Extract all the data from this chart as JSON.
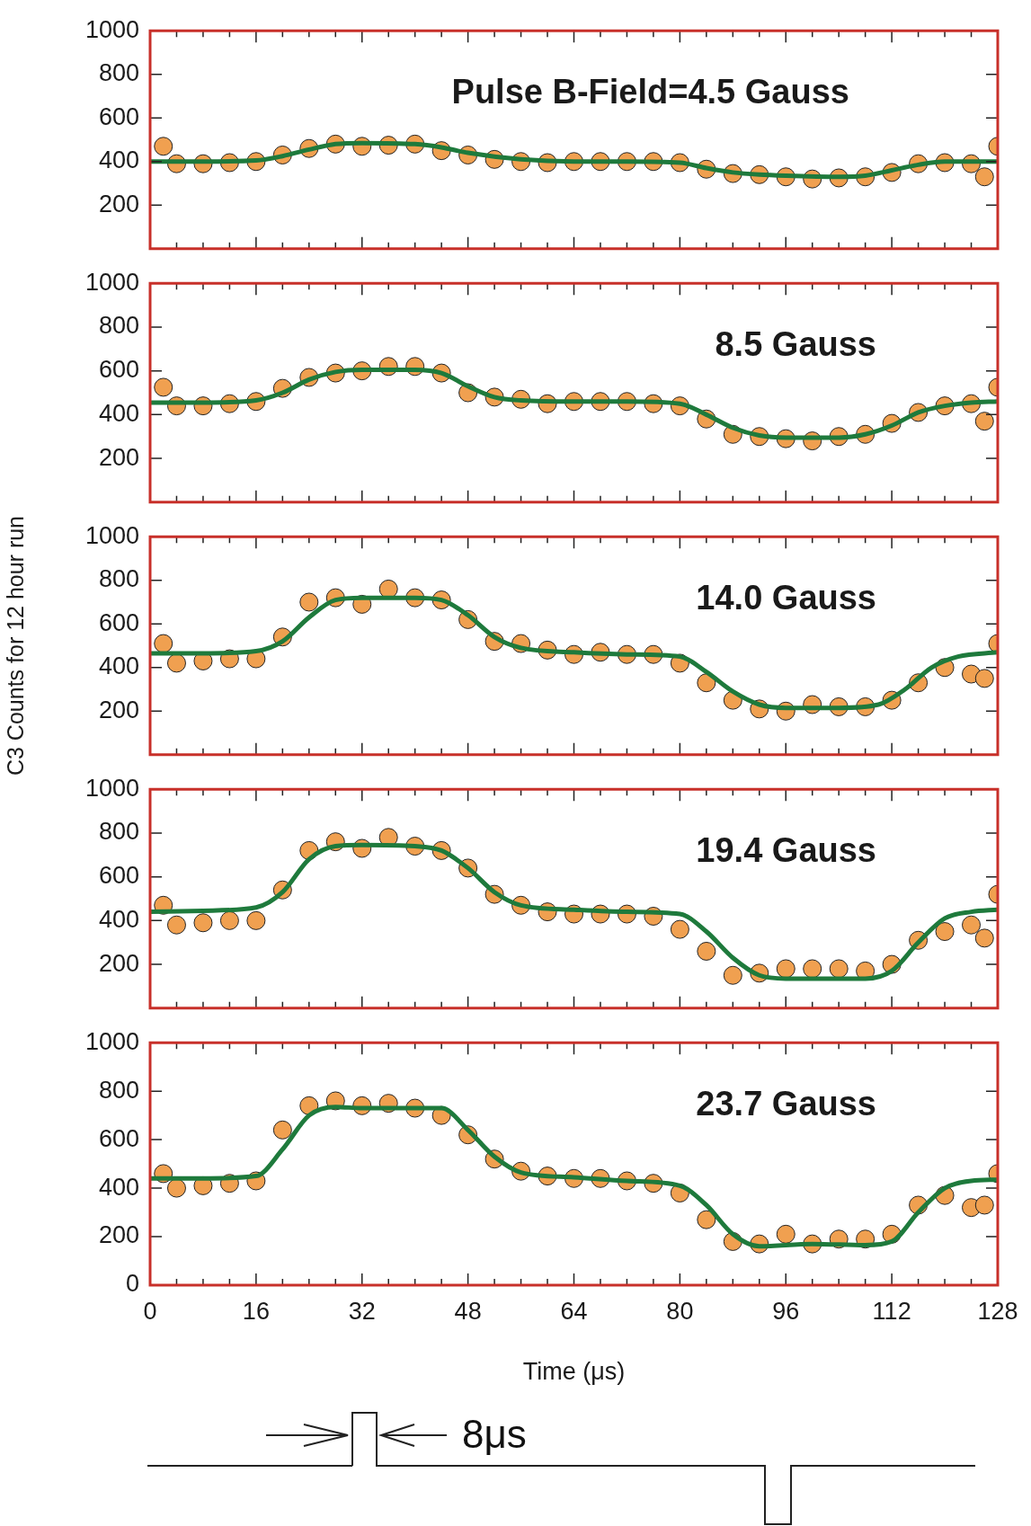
{
  "chart_data": [
    {
      "type": "scatter",
      "annotations": [
        "Pulse B-Field=4.5 Gauss"
      ],
      "xlim": [
        0,
        128
      ],
      "xticks": [
        0,
        {
          "value": 4,
          "label": null
        },
        {
          "value": 8,
          "label": null
        },
        {
          "value": 12,
          "label": null
        },
        16,
        {
          "value": 20,
          "label": null
        },
        {
          "value": 24,
          "label": null
        },
        {
          "value": 28,
          "label": null
        },
        32,
        {
          "value": 36,
          "label": null
        },
        {
          "value": 40,
          "label": null
        },
        {
          "value": 44,
          "label": null
        },
        48,
        {
          "value": 52,
          "label": null
        },
        {
          "value": 56,
          "label": null
        },
        {
          "value": 60,
          "label": null
        },
        64,
        {
          "value": 68,
          "label": null
        },
        {
          "value": 72,
          "label": null
        },
        {
          "value": 76,
          "label": null
        },
        80,
        {
          "value": 84,
          "label": null
        },
        {
          "value": 88,
          "label": null
        },
        {
          "value": 92,
          "label": null
        },
        96,
        {
          "value": 100,
          "label": null
        },
        {
          "value": 104,
          "label": null
        },
        {
          "value": 108,
          "label": null
        },
        112,
        {
          "value": 116,
          "label": null
        },
        {
          "value": 120,
          "label": null
        },
        {
          "value": 124,
          "label": null
        },
        128
      ],
      "ylim": [
        0,
        1000
      ],
      "yticks": [
        200,
        400,
        600,
        800,
        1000
      ],
      "tick_labels": "y",
      "marker": "circle",
      "series": [
        {
          "type": "scatter",
          "color": "#f0a050",
          "x": [
            2,
            4,
            8,
            12,
            16,
            20,
            24,
            28,
            32,
            36,
            40,
            44,
            48,
            52,
            56,
            60,
            64,
            68,
            72,
            76,
            80,
            84,
            88,
            92,
            96,
            100,
            104,
            108,
            112,
            116,
            120,
            124,
            126,
            128
          ],
          "values": [
            470,
            390,
            390,
            395,
            400,
            430,
            460,
            480,
            470,
            475,
            480,
            450,
            430,
            410,
            400,
            395,
            400,
            400,
            400,
            400,
            395,
            365,
            345,
            340,
            330,
            320,
            325,
            330,
            350,
            390,
            395,
            390,
            330,
            470
          ]
        },
        {
          "type": "line",
          "color": "#1e7a3c",
          "marker": "none",
          "x": [
            0,
            8,
            16,
            20,
            24,
            28,
            32,
            40,
            44,
            48,
            56,
            64,
            72,
            80,
            84,
            88,
            92,
            96,
            104,
            108,
            112,
            116,
            120,
            128
          ],
          "values": [
            400,
            400,
            405,
            425,
            455,
            480,
            485,
            480,
            465,
            440,
            410,
            400,
            400,
            395,
            370,
            350,
            340,
            335,
            330,
            335,
            360,
            385,
            400,
            400
          ]
        }
      ]
    },
    {
      "type": "scatter",
      "annotations": [
        "8.5 Gauss"
      ],
      "xlim": [
        0,
        128
      ],
      "xticks": [
        0,
        {
          "value": 4,
          "label": null
        },
        {
          "value": 8,
          "label": null
        },
        {
          "value": 12,
          "label": null
        },
        16,
        {
          "value": 20,
          "label": null
        },
        {
          "value": 24,
          "label": null
        },
        {
          "value": 28,
          "label": null
        },
        32,
        {
          "value": 36,
          "label": null
        },
        {
          "value": 40,
          "label": null
        },
        {
          "value": 44,
          "label": null
        },
        48,
        {
          "value": 52,
          "label": null
        },
        {
          "value": 56,
          "label": null
        },
        {
          "value": 60,
          "label": null
        },
        64,
        {
          "value": 68,
          "label": null
        },
        {
          "value": 72,
          "label": null
        },
        {
          "value": 76,
          "label": null
        },
        80,
        {
          "value": 84,
          "label": null
        },
        {
          "value": 88,
          "label": null
        },
        {
          "value": 92,
          "label": null
        },
        96,
        {
          "value": 100,
          "label": null
        },
        {
          "value": 104,
          "label": null
        },
        {
          "value": 108,
          "label": null
        },
        112,
        {
          "value": 116,
          "label": null
        },
        {
          "value": 120,
          "label": null
        },
        {
          "value": 124,
          "label": null
        },
        128
      ],
      "ylim": [
        0,
        1000
      ],
      "yticks": [
        200,
        400,
        600,
        800,
        1000
      ],
      "tick_labels": "y",
      "marker": "circle",
      "series": [
        {
          "type": "scatter",
          "color": "#f0a050",
          "x": [
            2,
            4,
            8,
            12,
            16,
            20,
            24,
            28,
            32,
            36,
            40,
            44,
            48,
            52,
            56,
            60,
            64,
            68,
            72,
            76,
            80,
            84,
            88,
            92,
            96,
            100,
            104,
            108,
            112,
            116,
            120,
            124,
            126,
            128
          ],
          "values": [
            525,
            440,
            440,
            450,
            460,
            520,
            570,
            590,
            600,
            620,
            620,
            590,
            500,
            480,
            470,
            450,
            460,
            460,
            460,
            450,
            440,
            380,
            310,
            300,
            290,
            280,
            300,
            310,
            360,
            410,
            440,
            450,
            370,
            525
          ]
        },
        {
          "type": "line",
          "color": "#1e7a3c",
          "marker": "none",
          "x": [
            0,
            8,
            16,
            20,
            24,
            28,
            32,
            40,
            44,
            48,
            52,
            56,
            64,
            72,
            80,
            84,
            88,
            92,
            96,
            104,
            108,
            112,
            116,
            120,
            124,
            128
          ],
          "values": [
            455,
            455,
            465,
            500,
            560,
            595,
            605,
            605,
            590,
            530,
            480,
            465,
            460,
            460,
            450,
            400,
            340,
            305,
            295,
            295,
            310,
            350,
            410,
            440,
            455,
            460
          ]
        }
      ]
    },
    {
      "type": "scatter",
      "annotations": [
        "14.0 Gauss"
      ],
      "ylabel": "C3 Counts for 12 hour run",
      "xlim": [
        0,
        128
      ],
      "xticks": [
        0,
        {
          "value": 4,
          "label": null
        },
        {
          "value": 8,
          "label": null
        },
        {
          "value": 12,
          "label": null
        },
        16,
        {
          "value": 20,
          "label": null
        },
        {
          "value": 24,
          "label": null
        },
        {
          "value": 28,
          "label": null
        },
        32,
        {
          "value": 36,
          "label": null
        },
        {
          "value": 40,
          "label": null
        },
        {
          "value": 44,
          "label": null
        },
        48,
        {
          "value": 52,
          "label": null
        },
        {
          "value": 56,
          "label": null
        },
        {
          "value": 60,
          "label": null
        },
        64,
        {
          "value": 68,
          "label": null
        },
        {
          "value": 72,
          "label": null
        },
        {
          "value": 76,
          "label": null
        },
        80,
        {
          "value": 84,
          "label": null
        },
        {
          "value": 88,
          "label": null
        },
        {
          "value": 92,
          "label": null
        },
        96,
        {
          "value": 100,
          "label": null
        },
        {
          "value": 104,
          "label": null
        },
        {
          "value": 108,
          "label": null
        },
        112,
        {
          "value": 116,
          "label": null
        },
        {
          "value": 120,
          "label": null
        },
        {
          "value": 124,
          "label": null
        },
        128
      ],
      "ylim": [
        0,
        1000
      ],
      "yticks": [
        200,
        400,
        600,
        800,
        1000
      ],
      "tick_labels": "y",
      "marker": "circle",
      "series": [
        {
          "type": "scatter",
          "color": "#f0a050",
          "x": [
            2,
            4,
            8,
            12,
            16,
            20,
            24,
            28,
            32,
            36,
            40,
            44,
            48,
            52,
            56,
            60,
            64,
            68,
            72,
            76,
            80,
            84,
            88,
            92,
            96,
            100,
            104,
            108,
            112,
            116,
            120,
            124,
            126,
            128
          ],
          "values": [
            510,
            420,
            430,
            440,
            440,
            540,
            700,
            720,
            690,
            760,
            720,
            710,
            620,
            520,
            510,
            480,
            460,
            470,
            460,
            460,
            420,
            330,
            250,
            210,
            200,
            230,
            220,
            220,
            250,
            330,
            400,
            370,
            350,
            510
          ]
        },
        {
          "type": "line",
          "color": "#1e7a3c",
          "marker": "none",
          "x": [
            0,
            8,
            16,
            20,
            24,
            28,
            32,
            40,
            44,
            48,
            52,
            56,
            64,
            72,
            80,
            84,
            88,
            92,
            96,
            104,
            110,
            114,
            118,
            122,
            128
          ],
          "values": [
            465,
            465,
            475,
            520,
            630,
            710,
            720,
            720,
            710,
            640,
            540,
            490,
            470,
            460,
            450,
            380,
            290,
            230,
            215,
            215,
            230,
            300,
            400,
            450,
            470
          ]
        }
      ]
    },
    {
      "type": "scatter",
      "annotations": [
        "19.4 Gauss"
      ],
      "xlim": [
        0,
        128
      ],
      "xticks": [
        0,
        {
          "value": 4,
          "label": null
        },
        {
          "value": 8,
          "label": null
        },
        {
          "value": 12,
          "label": null
        },
        16,
        {
          "value": 20,
          "label": null
        },
        {
          "value": 24,
          "label": null
        },
        {
          "value": 28,
          "label": null
        },
        32,
        {
          "value": 36,
          "label": null
        },
        {
          "value": 40,
          "label": null
        },
        {
          "value": 44,
          "label": null
        },
        48,
        {
          "value": 52,
          "label": null
        },
        {
          "value": 56,
          "label": null
        },
        {
          "value": 60,
          "label": null
        },
        64,
        {
          "value": 68,
          "label": null
        },
        {
          "value": 72,
          "label": null
        },
        {
          "value": 76,
          "label": null
        },
        80,
        {
          "value": 84,
          "label": null
        },
        {
          "value": 88,
          "label": null
        },
        {
          "value": 92,
          "label": null
        },
        96,
        {
          "value": 100,
          "label": null
        },
        {
          "value": 104,
          "label": null
        },
        {
          "value": 108,
          "label": null
        },
        112,
        {
          "value": 116,
          "label": null
        },
        {
          "value": 120,
          "label": null
        },
        {
          "value": 124,
          "label": null
        },
        128
      ],
      "ylim": [
        0,
        1000
      ],
      "yticks": [
        200,
        400,
        600,
        800,
        1000
      ],
      "tick_labels": "y",
      "marker": "circle",
      "series": [
        {
          "type": "scatter",
          "color": "#f0a050",
          "x": [
            2,
            4,
            8,
            12,
            16,
            20,
            24,
            28,
            32,
            36,
            40,
            44,
            48,
            52,
            56,
            60,
            64,
            68,
            72,
            76,
            80,
            84,
            88,
            92,
            96,
            100,
            104,
            108,
            112,
            116,
            120,
            124,
            126,
            128
          ],
          "values": [
            470,
            380,
            390,
            400,
            400,
            540,
            720,
            760,
            730,
            780,
            740,
            720,
            640,
            520,
            470,
            440,
            430,
            430,
            430,
            420,
            360,
            260,
            150,
            160,
            180,
            180,
            180,
            170,
            200,
            310,
            350,
            380,
            320,
            520
          ]
        },
        {
          "type": "line",
          "color": "#1e7a3c",
          "marker": "none",
          "x": [
            0,
            8,
            16,
            20,
            24,
            28,
            32,
            40,
            44,
            48,
            52,
            56,
            64,
            72,
            80,
            84,
            88,
            92,
            96,
            108,
            112,
            116,
            120,
            124,
            128
          ],
          "values": [
            440,
            445,
            460,
            530,
            680,
            740,
            745,
            740,
            720,
            640,
            530,
            470,
            450,
            440,
            430,
            350,
            230,
            150,
            135,
            135,
            170,
            300,
            410,
            440,
            450
          ]
        }
      ]
    },
    {
      "type": "scatter",
      "annotations": [
        "23.7 Gauss",
        "8μs"
      ],
      "xlabel": "Time (μs)",
      "xlim": [
        0,
        128
      ],
      "xticks": [
        0,
        {
          "value": 4,
          "label": null
        },
        {
          "value": 8,
          "label": null
        },
        {
          "value": 12,
          "label": null
        },
        16,
        {
          "value": 20,
          "label": null
        },
        {
          "value": 24,
          "label": null
        },
        {
          "value": 28,
          "label": null
        },
        32,
        {
          "value": 36,
          "label": null
        },
        {
          "value": 40,
          "label": null
        },
        {
          "value": 44,
          "label": null
        },
        48,
        {
          "value": 52,
          "label": null
        },
        {
          "value": 56,
          "label": null
        },
        {
          "value": 60,
          "label": null
        },
        64,
        {
          "value": 68,
          "label": null
        },
        {
          "value": 72,
          "label": null
        },
        {
          "value": 76,
          "label": null
        },
        80,
        {
          "value": 84,
          "label": null
        },
        {
          "value": 88,
          "label": null
        },
        {
          "value": 92,
          "label": null
        },
        96,
        {
          "value": 100,
          "label": null
        },
        {
          "value": 104,
          "label": null
        },
        {
          "value": 108,
          "label": null
        },
        112,
        {
          "value": 116,
          "label": null
        },
        {
          "value": 120,
          "label": null
        },
        {
          "value": 124,
          "label": null
        },
        128
      ],
      "ylim": [
        0,
        1000
      ],
      "yticks": [
        0,
        200,
        400,
        600,
        800,
        1000
      ],
      "marker": "circle",
      "series": [
        {
          "type": "scatter",
          "color": "#f0a050",
          "x": [
            2,
            4,
            8,
            12,
            16,
            20,
            24,
            28,
            32,
            36,
            40,
            44,
            48,
            52,
            56,
            60,
            64,
            68,
            72,
            76,
            80,
            84,
            88,
            92,
            96,
            100,
            104,
            108,
            112,
            116,
            120,
            124,
            126,
            128
          ],
          "values": [
            460,
            400,
            410,
            420,
            430,
            640,
            740,
            760,
            740,
            750,
            730,
            700,
            620,
            520,
            470,
            450,
            440,
            440,
            430,
            420,
            380,
            270,
            180,
            170,
            210,
            170,
            190,
            190,
            210,
            330,
            370,
            320,
            330,
            460
          ]
        },
        {
          "type": "line",
          "color": "#1e7a3c",
          "marker": "none",
          "x": [
            0,
            8,
            16,
            20,
            24,
            28,
            32,
            44,
            48,
            52,
            56,
            64,
            72,
            80,
            84,
            88,
            92,
            100,
            108,
            112,
            116,
            120,
            124,
            128
          ],
          "values": [
            440,
            440,
            450,
            560,
            700,
            735,
            730,
            730,
            640,
            530,
            465,
            445,
            430,
            410,
            330,
            210,
            160,
            170,
            165,
            180,
            300,
            400,
            430,
            435
          ]
        }
      ]
    }
  ]
}
